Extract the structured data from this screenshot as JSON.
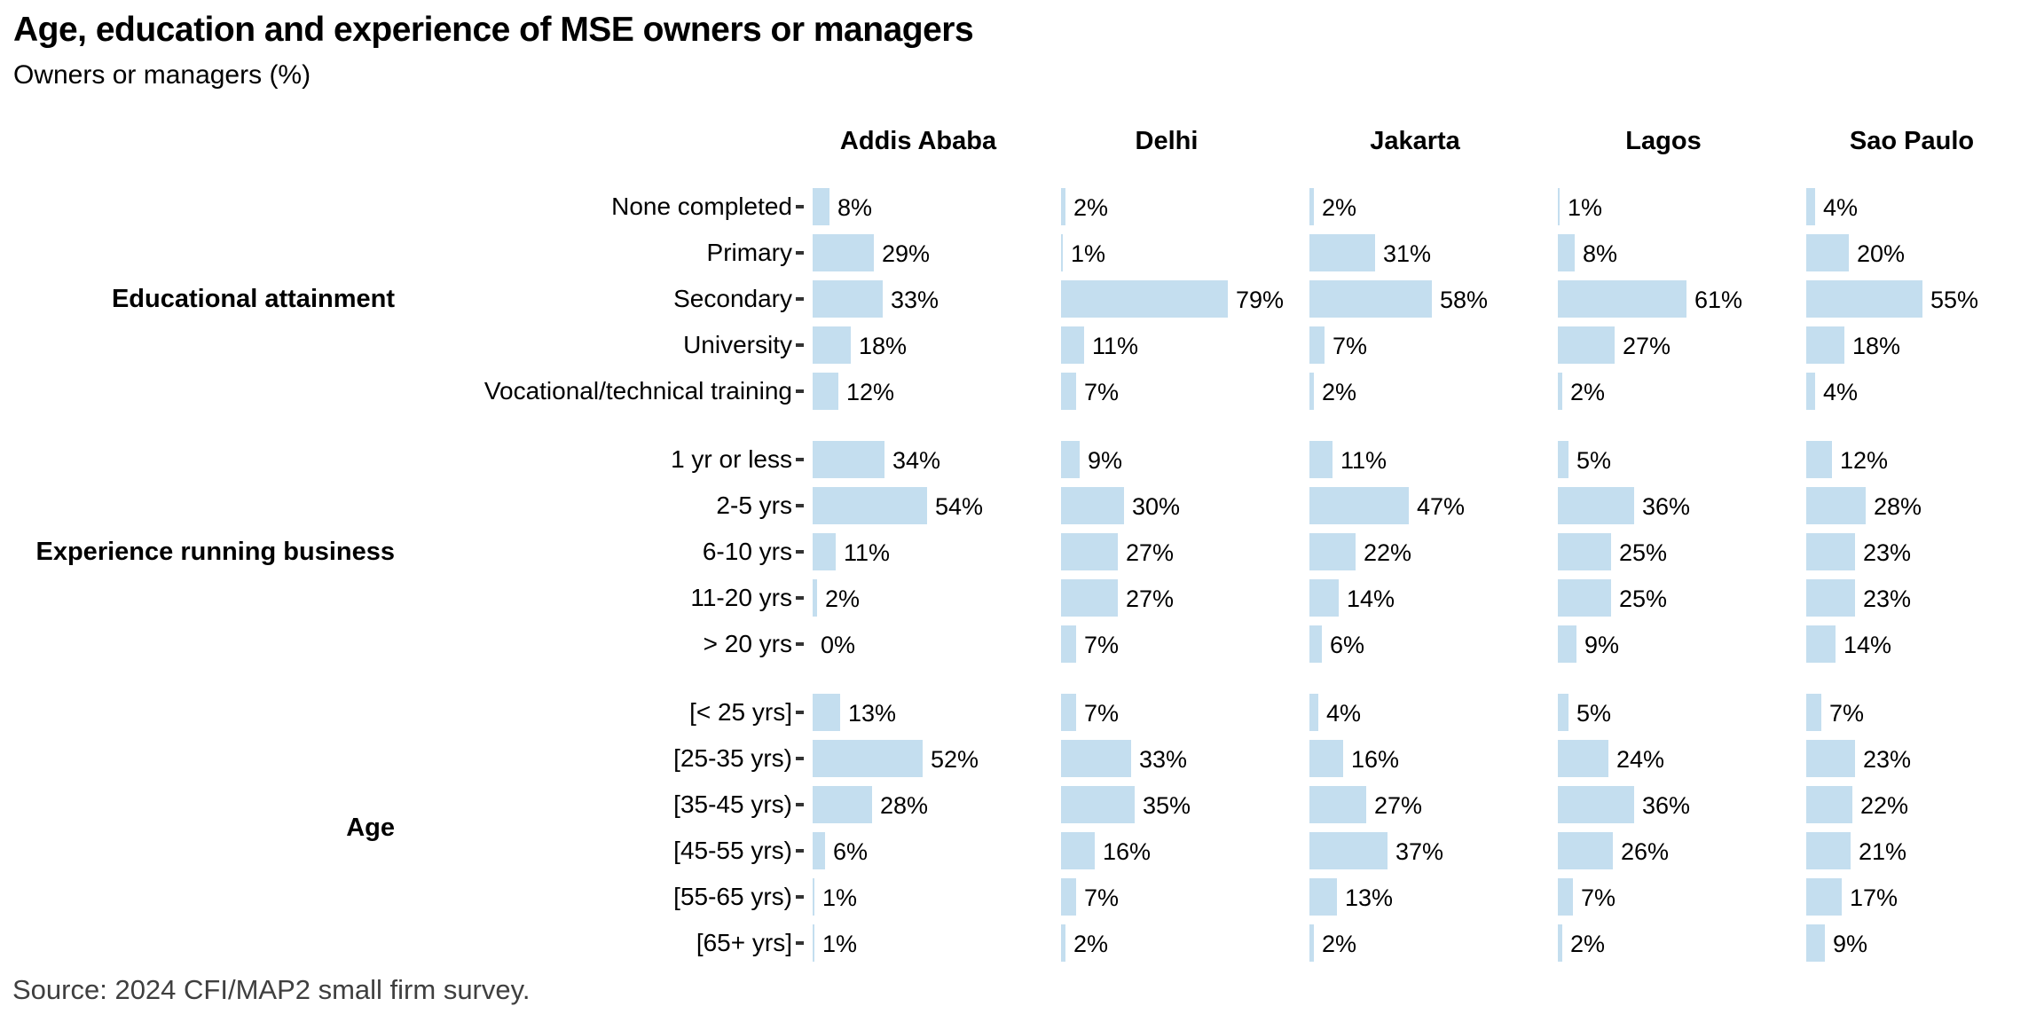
{
  "header": {
    "title": "Age, education and experience of MSE owners or managers",
    "subtitle": "Owners or managers (%)"
  },
  "columns": [
    "Addis Ababa",
    "Delhi",
    "Jakarta",
    "Lagos",
    "Sao Paulo"
  ],
  "footer": {
    "source": "Source: 2024 CFI/MAP2 small firm survey."
  },
  "colors": {
    "bar": "#c4deef",
    "tick": "#333333",
    "text": "#000000",
    "source_text": "#3f3f3f"
  },
  "chart_data": {
    "type": "bar",
    "orientation": "horizontal",
    "title": "Age, education and experience of MSE owners or managers",
    "subtitle": "Owners or managers (%)",
    "facets": [
      "Addis Ababa",
      "Delhi",
      "Jakarta",
      "Lagos",
      "Sao Paulo"
    ],
    "value_format": "percent",
    "xlim": [
      0,
      100
    ],
    "grid": false,
    "groups": [
      {
        "label": "Educational attainment",
        "rows": [
          {
            "label": "None completed",
            "values": [
              8,
              2,
              2,
              1,
              4
            ],
            "value_labels": [
              "8%",
              "2%",
              "2%",
              "1%",
              "4%"
            ]
          },
          {
            "label": "Primary",
            "values": [
              29,
              1,
              31,
              8,
              20
            ],
            "value_labels": [
              "29%",
              "1%",
              "31%",
              "8%",
              "20%"
            ]
          },
          {
            "label": "Secondary",
            "values": [
              33,
              79,
              58,
              61,
              55
            ],
            "value_labels": [
              "33%",
              "79%",
              "58%",
              "61%",
              "55%"
            ]
          },
          {
            "label": "University",
            "values": [
              18,
              11,
              7,
              27,
              18
            ],
            "value_labels": [
              "18%",
              "11%",
              "7%",
              "27%",
              "18%"
            ]
          },
          {
            "label": "Vocational/technical training",
            "values": [
              12,
              7,
              2,
              2,
              4
            ],
            "value_labels": [
              "12%",
              "7%",
              "2%",
              "2%",
              "4%"
            ]
          }
        ]
      },
      {
        "label": "Experience running business",
        "rows": [
          {
            "label": "1 yr or less",
            "values": [
              34,
              9,
              11,
              5,
              12
            ],
            "value_labels": [
              "34%",
              "9%",
              "11%",
              "5%",
              "12%"
            ]
          },
          {
            "label": "2-5 yrs",
            "values": [
              54,
              30,
              47,
              36,
              28
            ],
            "value_labels": [
              "54%",
              "30%",
              "47%",
              "36%",
              "28%"
            ]
          },
          {
            "label": "6-10 yrs",
            "values": [
              11,
              27,
              22,
              25,
              23
            ],
            "value_labels": [
              "11%",
              "27%",
              "22%",
              "25%",
              "23%"
            ]
          },
          {
            "label": "11-20 yrs",
            "values": [
              2,
              27,
              14,
              25,
              23
            ],
            "value_labels": [
              "2%",
              "27%",
              "14%",
              "25%",
              "23%"
            ]
          },
          {
            "label": "> 20 yrs",
            "values": [
              0,
              7,
              6,
              9,
              14
            ],
            "value_labels": [
              "0%",
              "7%",
              "6%",
              "9%",
              "14%"
            ]
          }
        ]
      },
      {
        "label": "Age",
        "rows": [
          {
            "label": "[< 25 yrs]",
            "values": [
              13,
              7,
              4,
              5,
              7
            ],
            "value_labels": [
              "13%",
              "7%",
              "4%",
              "5%",
              "7%"
            ]
          },
          {
            "label": "[25-35 yrs)",
            "values": [
              52,
              33,
              16,
              24,
              23
            ],
            "value_labels": [
              "52%",
              "33%",
              "16%",
              "24%",
              "23%"
            ]
          },
          {
            "label": "[35-45 yrs)",
            "values": [
              28,
              35,
              27,
              36,
              22
            ],
            "value_labels": [
              "28%",
              "35%",
              "27%",
              "36%",
              "22%"
            ]
          },
          {
            "label": "[45-55 yrs)",
            "values": [
              6,
              16,
              37,
              26,
              21
            ],
            "value_labels": [
              "6%",
              "16%",
              "37%",
              "26%",
              "21%"
            ]
          },
          {
            "label": "[55-65 yrs)",
            "values": [
              1,
              7,
              13,
              7,
              17
            ],
            "value_labels": [
              "1%",
              "7%",
              "13%",
              "7%",
              "17%"
            ]
          },
          {
            "label": "[65+ yrs]",
            "values": [
              1,
              2,
              2,
              2,
              9
            ],
            "value_labels": [
              "1%",
              "2%",
              "2%",
              "2%",
              "9%"
            ]
          }
        ]
      }
    ]
  }
}
